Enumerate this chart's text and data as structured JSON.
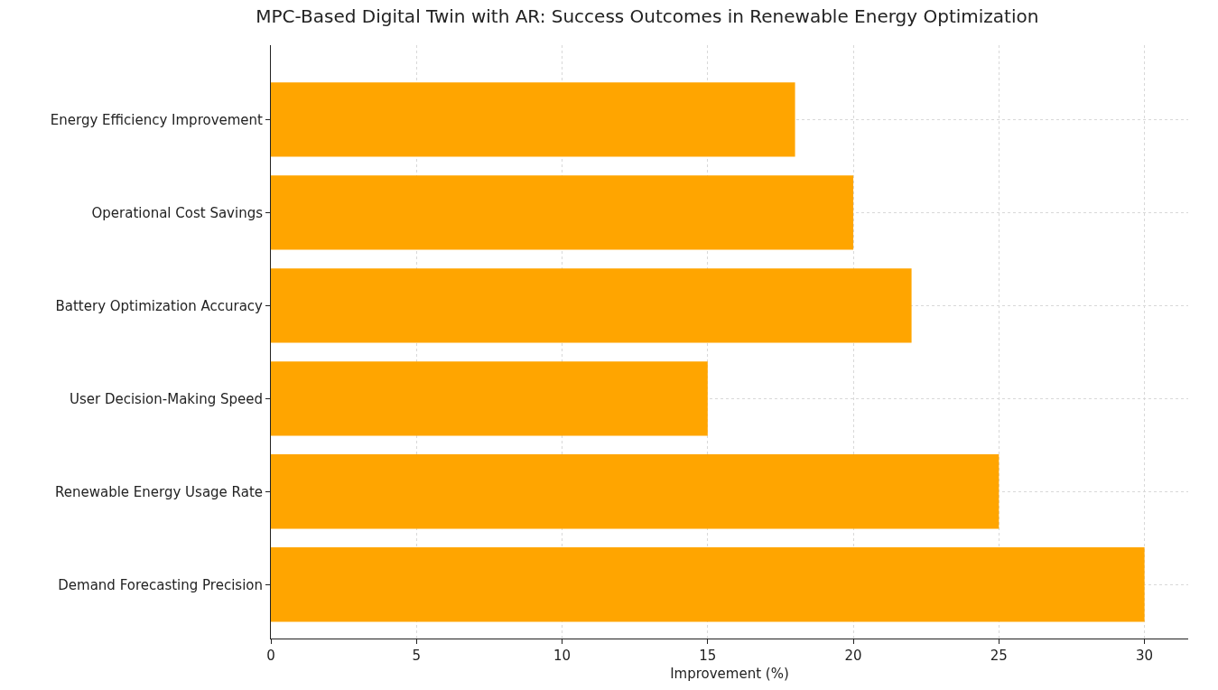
{
  "chart_data": {
    "type": "bar",
    "orientation": "horizontal",
    "title": "MPC-Based Digital Twin with AR: Success Outcomes in Renewable Energy Optimization",
    "xlabel": "Improvement (%)",
    "categories": [
      "Energy Efficiency Improvement",
      "Operational Cost Savings",
      "Battery Optimization Accuracy",
      "User Decision-Making Speed",
      "Renewable Energy Usage Rate",
      "Demand Forecasting Precision"
    ],
    "values": [
      18,
      20,
      22,
      15,
      25,
      30
    ],
    "color": "#ffa500",
    "xlim": [
      0,
      31.5
    ],
    "xticks": [
      0,
      5,
      10,
      15,
      20,
      25,
      30
    ],
    "grid": true
  }
}
